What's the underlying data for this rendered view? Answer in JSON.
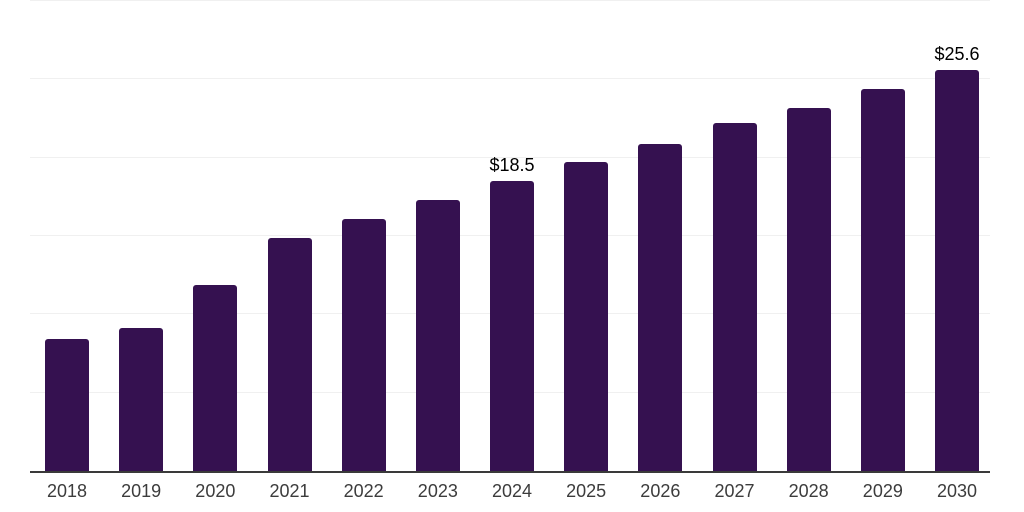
{
  "chart_data": {
    "type": "bar",
    "categories": [
      "2018",
      "2019",
      "2020",
      "2021",
      "2022",
      "2023",
      "2024",
      "2025",
      "2026",
      "2027",
      "2028",
      "2029",
      "2030"
    ],
    "values": [
      8.4,
      9.1,
      11.9,
      14.9,
      16.1,
      17.3,
      18.5,
      19.7,
      20.9,
      22.2,
      23.2,
      24.4,
      25.6
    ],
    "data_labels": [
      "",
      "",
      "",
      "",
      "",
      "",
      "$18.5",
      "",
      "",
      "",
      "",
      "",
      "$25.6"
    ],
    "title": "",
    "xlabel": "",
    "ylabel": "",
    "ylim": [
      0,
      30
    ],
    "grid": true,
    "gridline_step": 5,
    "legend": false,
    "colors": {
      "bar": "#351150",
      "gridline": "#f0f0f0",
      "axis_line": "#3a3a3a",
      "tick_label": "#3c3c3c",
      "value_label": "#000000",
      "background": "#ffffff"
    }
  }
}
